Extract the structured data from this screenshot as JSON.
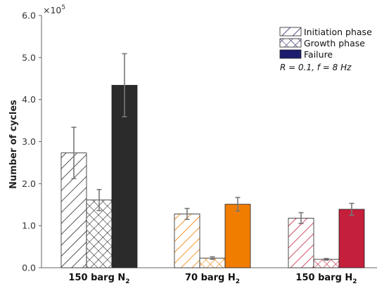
{
  "chart_data": {
    "type": "bar",
    "title": "",
    "ylabel": "Number of cycles",
    "y_multiplier": {
      "base": "×10",
      "exponent": "5"
    },
    "ylim": [
      0,
      6.0
    ],
    "yticks": [
      "0.0",
      "1.0",
      "2.0",
      "3.0",
      "4.0",
      "5.0",
      "6.0"
    ],
    "categories": [
      {
        "base": "150 barg N",
        "sub": "2"
      },
      {
        "base": "70 barg H",
        "sub": "2"
      },
      {
        "base": "150 barg H",
        "sub": "2"
      }
    ],
    "category_colors": [
      "#2b2b2b",
      "#f07d00",
      "#c41f3b"
    ],
    "series": [
      {
        "name": "Initiation phase",
        "pattern": "diagonal-hatch",
        "values": [
          2.73,
          1.28,
          1.18
        ],
        "err": [
          0.61,
          0.13,
          0.13
        ]
      },
      {
        "name": "Growth phase",
        "pattern": "cross-hatch",
        "values": [
          1.61,
          0.23,
          0.2
        ],
        "err": [
          0.25,
          0.03,
          0.02
        ]
      },
      {
        "name": "Failure",
        "pattern": "solid",
        "values": [
          4.34,
          1.51,
          1.39
        ],
        "err": [
          0.75,
          0.16,
          0.14
        ]
      }
    ],
    "legend": {
      "placement": "top-right",
      "swatch_color": "#1c1c6e"
    },
    "annotation": "R = 0.1, f = 8 Hz",
    "grid": false
  }
}
